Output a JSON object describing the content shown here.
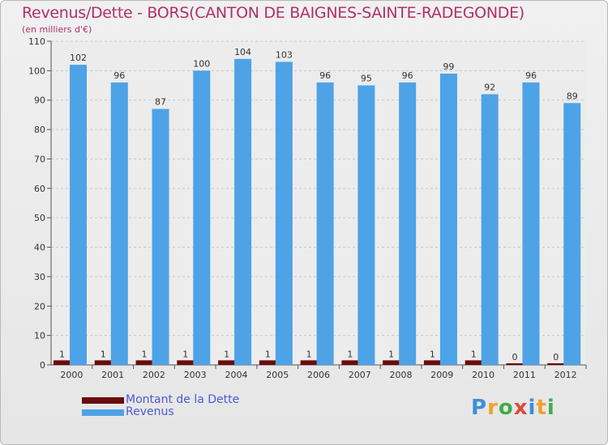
{
  "chart_data": {
    "type": "bar",
    "title": "Revenus/Dette - BORS(CANTON DE BAIGNES-SAINTE-RADEGONDE)",
    "subtitle": "(en milliers d'€)",
    "categories": [
      "2000",
      "2001",
      "2002",
      "2003",
      "2004",
      "2005",
      "2006",
      "2007",
      "2008",
      "2009",
      "2010",
      "2011",
      "2012"
    ],
    "series": [
      {
        "name": "Montant de la Dette",
        "color": "#6b0a0a",
        "values": [
          1,
          1,
          1,
          1,
          1,
          1,
          1,
          1,
          1,
          1,
          1,
          0,
          0
        ]
      },
      {
        "name": "Revenus",
        "color": "#4da3e6",
        "values": [
          102,
          96,
          87,
          100,
          104,
          103,
          96,
          95,
          96,
          99,
          92,
          96,
          89
        ]
      }
    ],
    "yticks": [
      0,
      10,
      20,
      30,
      40,
      50,
      60,
      70,
      80,
      90,
      100,
      110
    ],
    "ylim": [
      0,
      110
    ],
    "grid": true,
    "legend_position": "bottom-left"
  },
  "logo": {
    "letters": [
      "P",
      "r",
      "o",
      "x",
      "i",
      "t",
      "i"
    ],
    "colors": [
      "#3b8fd9",
      "#f0a030",
      "#3fae49",
      "#e04a3a",
      "#3b8fd9",
      "#f0a030",
      "#3fae49"
    ]
  }
}
